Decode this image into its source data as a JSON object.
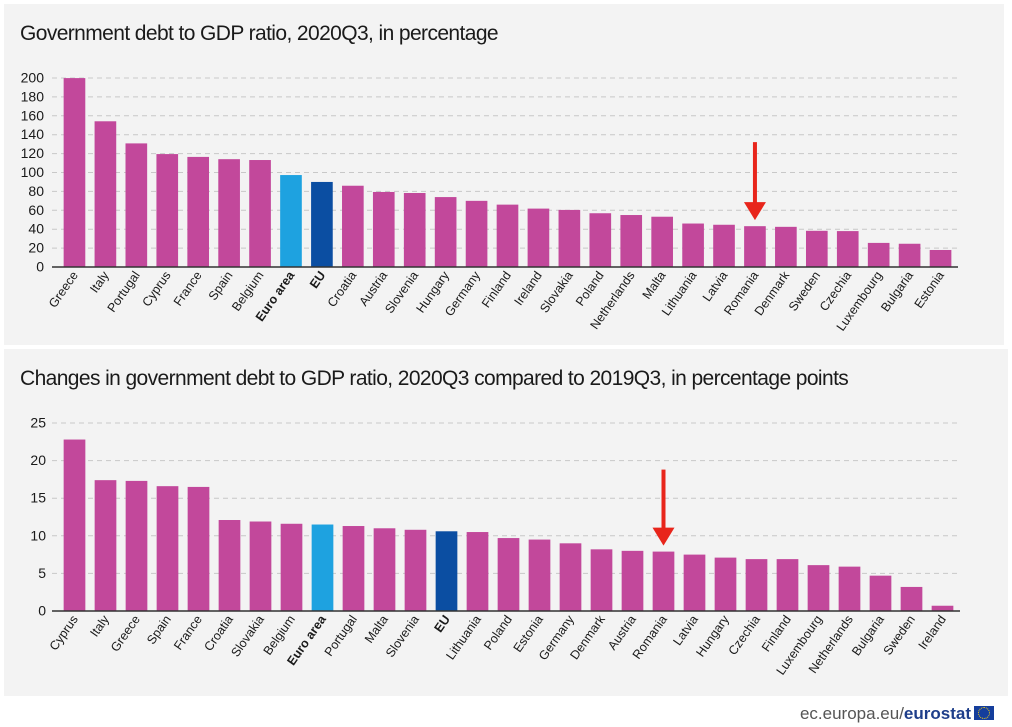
{
  "footer": {
    "site": "ec.europa.eu/",
    "brand": "eurostat"
  },
  "colors": {
    "country": "#c2489b",
    "euro_area": "#1ea2e0",
    "eu": "#0b4ea2",
    "arrow": "#e8251b",
    "grid": "#c8c8c8"
  },
  "chart_data": [
    {
      "type": "bar",
      "title": "Government debt to GDP ratio, 2020Q3, in percentage",
      "categories": [
        "Greece",
        "Italy",
        "Portugal",
        "Cyprus",
        "France",
        "Spain",
        "Belgium",
        "Euro area",
        "EU",
        "Croatia",
        "Austria",
        "Slovenia",
        "Hungary",
        "Germany",
        "Finland",
        "Ireland",
        "Slovakia",
        "Poland",
        "Netherlands",
        "Malta",
        "Lithuania",
        "Latvia",
        "Romania",
        "Denmark",
        "Sweden",
        "Czechia",
        "Luxembourg",
        "Bulgaria",
        "Estonia"
      ],
      "values": [
        199.9,
        154.2,
        130.8,
        119.5,
        116.5,
        114.1,
        113.2,
        97.3,
        90.0,
        86.0,
        79.4,
        78.3,
        74.0,
        70.0,
        66.0,
        61.8,
        60.4,
        56.9,
        55.0,
        53.2,
        46.0,
        44.7,
        43.2,
        42.5,
        38.3,
        38.0,
        25.5,
        24.6,
        18.0
      ],
      "highlight": {
        "Euro area": "euro_area",
        "EU": "eu"
      },
      "bold_labels": [
        "Euro area",
        "EU"
      ],
      "arrow_at": "Romania",
      "ylim": [
        0,
        200
      ],
      "yticks": [
        0,
        20,
        40,
        60,
        80,
        100,
        120,
        140,
        160,
        180,
        200
      ],
      "grid": true,
      "xlabel": "",
      "ylabel": ""
    },
    {
      "type": "bar",
      "title": "Changes in government debt to GDP ratio, 2020Q3 compared to 2019Q3, in percentage points",
      "categories": [
        "Cyprus",
        "Italy",
        "Greece",
        "Spain",
        "France",
        "Croatia",
        "Slovakia",
        "Belgium",
        "Euro area",
        "Portugal",
        "Malta",
        "Slovenia",
        "EU",
        "Lithuania",
        "Poland",
        "Estonia",
        "Germany",
        "Denmark",
        "Austria",
        "Romania",
        "Latvia",
        "Hungary",
        "Czechia",
        "Finland",
        "Luxembourg",
        "Netherlands",
        "Bulgaria",
        "Sweden",
        "Ireland"
      ],
      "values": [
        22.8,
        17.4,
        17.3,
        16.6,
        16.5,
        12.1,
        11.9,
        11.6,
        11.5,
        11.3,
        11.0,
        10.8,
        10.6,
        10.5,
        9.7,
        9.5,
        9.0,
        8.2,
        8.0,
        7.9,
        7.5,
        7.1,
        6.9,
        6.9,
        6.1,
        5.9,
        4.7,
        3.2,
        0.7
      ],
      "highlight": {
        "Euro area": "euro_area",
        "EU": "eu"
      },
      "bold_labels": [
        "Euro area",
        "EU"
      ],
      "arrow_at": "Romania",
      "ylim": [
        0,
        25
      ],
      "yticks": [
        0,
        5,
        10,
        15,
        20,
        25
      ],
      "grid": true,
      "xlabel": "",
      "ylabel": ""
    }
  ]
}
